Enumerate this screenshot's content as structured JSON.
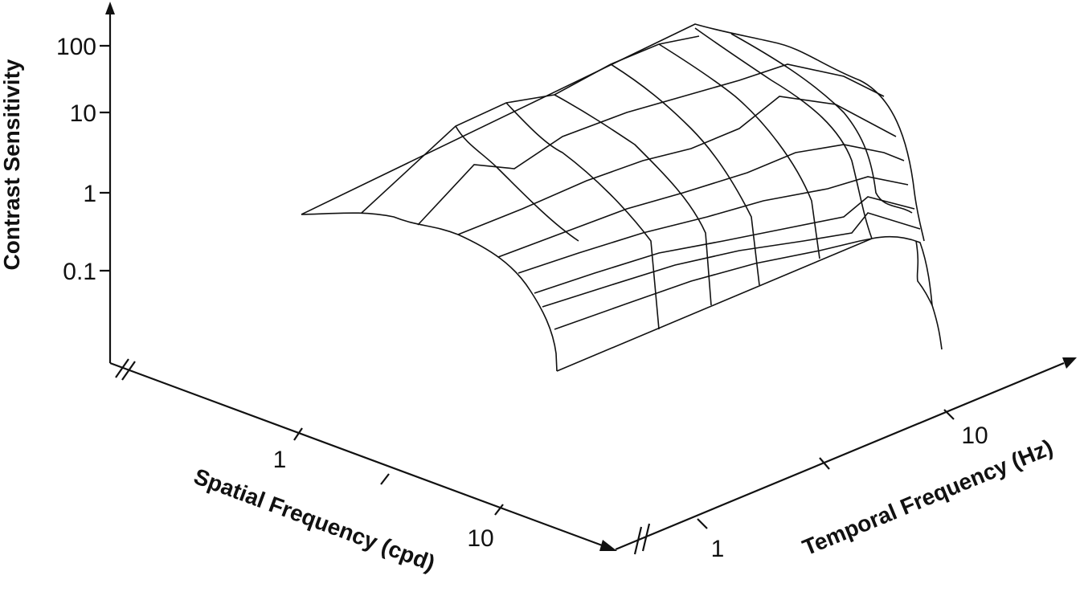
{
  "figure": {
    "z_axis": {
      "label": "Contrast Sensitivity",
      "ticks": [
        "100",
        "10",
        "1",
        "0.1"
      ]
    },
    "spatial_axis": {
      "label": "Spatial Frequency (cpd)",
      "ticks": [
        "1",
        "10"
      ]
    },
    "temporal_axis": {
      "label": "Temporal Frequency (Hz)",
      "ticks": [
        "1",
        "10"
      ]
    }
  }
}
